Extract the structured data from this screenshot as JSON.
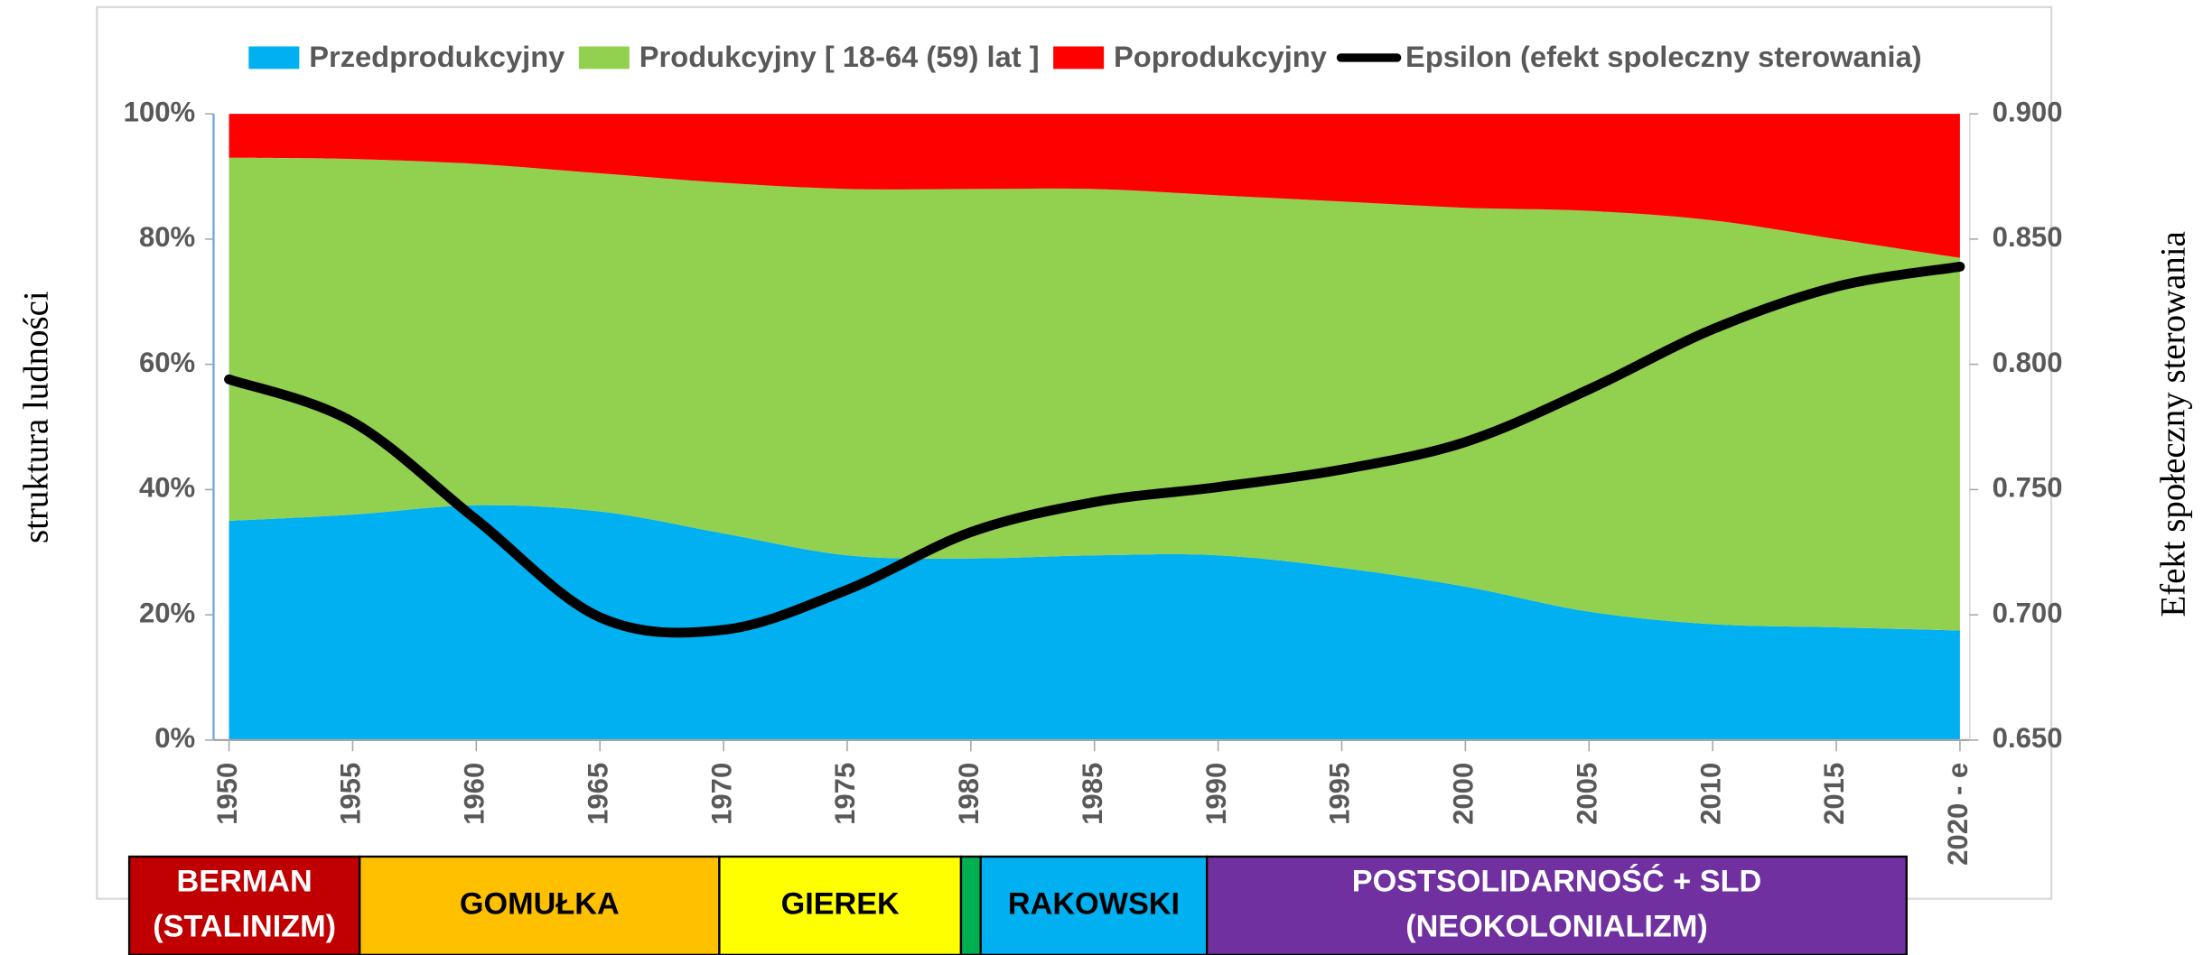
{
  "chart_data": {
    "type": "stacked-area",
    "x": [
      1950,
      1955,
      1960,
      1965,
      1970,
      1975,
      1980,
      1985,
      1990,
      1995,
      2000,
      2005,
      2010,
      2015,
      2020
    ],
    "series": [
      {
        "name": "Przedprodukcyjny",
        "color": "#00b0f0",
        "values": [
          35,
          36,
          37.5,
          36.5,
          33,
          29.5,
          29,
          29.5,
          29.5,
          27.5,
          24.5,
          20.5,
          18.5,
          18,
          17.5
        ]
      },
      {
        "name": "Produkcyjny [ 18-64 (59) lat ]",
        "color": "#92d050",
        "values": [
          58,
          56.8,
          54.5,
          54,
          56,
          58.5,
          59,
          58.5,
          57.5,
          58.5,
          60.5,
          64,
          64.5,
          62,
          59.5
        ]
      },
      {
        "name": "Poprodukcyjny",
        "color": "#ff0000",
        "values": [
          7,
          7.2,
          8,
          9.5,
          11,
          12,
          12,
          12,
          13,
          14,
          15,
          15.5,
          17,
          20,
          23
        ]
      },
      {
        "name": "Epsilon (efekt spoleczny sterowania)",
        "color": "#000000",
        "axis": "y2",
        "type": "line",
        "values": [
          0.794,
          0.777,
          0.738,
          0.699,
          0.694,
          0.71,
          0.733,
          0.745,
          0.751,
          0.758,
          0.769,
          0.79,
          0.814,
          0.831,
          0.839
        ]
      }
    ],
    "xlim": [
      1950,
      2020
    ],
    "xticks": [
      1950,
      1955,
      1960,
      1965,
      1970,
      1975,
      1980,
      1985,
      1990,
      1995,
      2000,
      2005,
      2010,
      2015,
      {
        "value": 2020,
        "label": "2020 - e"
      }
    ],
    "ylim": [
      0,
      100
    ],
    "yticks": [
      {
        "value": 0,
        "label": "0%"
      },
      {
        "value": 20,
        "label": "20%"
      },
      {
        "value": 40,
        "label": "40%"
      },
      {
        "value": 60,
        "label": "60%"
      },
      {
        "value": 80,
        "label": "80%"
      },
      {
        "value": 100,
        "label": "100%"
      }
    ],
    "y2lim": [
      0.65,
      0.9
    ],
    "y2ticks": [
      {
        "value": 0.65,
        "label": "0.650"
      },
      {
        "value": 0.7,
        "label": "0.700"
      },
      {
        "value": 0.75,
        "label": "0.750"
      },
      {
        "value": 0.8,
        "label": "0.800"
      },
      {
        "value": 0.85,
        "label": "0.850"
      },
      {
        "value": 0.9,
        "label": "0.900"
      }
    ],
    "ylabel": "struktura ludności",
    "y2label": "Efekt społeczny sterowania",
    "legend": "top"
  },
  "eras": [
    {
      "lines": [
        "BERMAN",
        "(STALINIZM)"
      ],
      "color": "#c00000"
    },
    {
      "lines": [
        "GOMUŁKA"
      ],
      "color": "#ffc000"
    },
    {
      "lines": [
        "GIEREK"
      ],
      "color": "#ffff00"
    },
    {
      "color": "#00b050"
    },
    {
      "lines": [
        "RAKOWSKI"
      ],
      "color": "#00b0f0"
    },
    {
      "lines": [
        "POSTSOLIDARNOŚĆ + SLD",
        "(NEOKOLONIALIZM)"
      ],
      "color": "#7030a0"
    }
  ]
}
